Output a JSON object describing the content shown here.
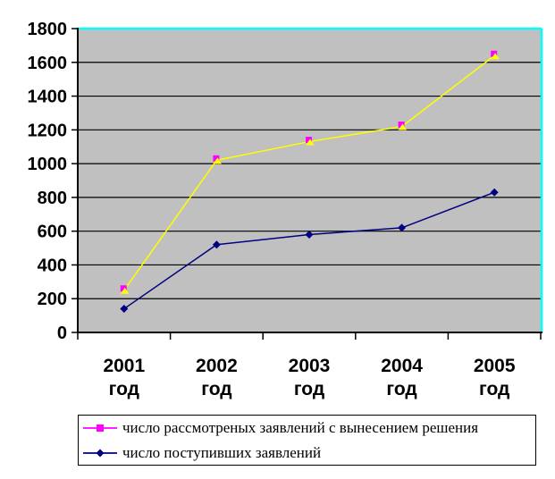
{
  "chart_data": {
    "type": "line",
    "title": "",
    "xlabel": "",
    "ylabel": "",
    "categories": [
      "2001 год",
      "2002 год",
      "2003 год",
      "2004 год",
      "2005 год"
    ],
    "series": [
      {
        "name": "число рассмотреных заявлений с вынесением решения",
        "values": [
          250,
          1020,
          1130,
          1220,
          1640
        ],
        "line_color": "#FFFF00",
        "marker": "square",
        "marker_color": "#FF00FF",
        "marker_overlay": {
          "shape": "triangle",
          "color": "#FFFF00"
        },
        "legend_line_color": "#FF00FF"
      },
      {
        "name": "число поступивших заявлений",
        "values": [
          140,
          520,
          580,
          620,
          830
        ],
        "line_color": "#000080",
        "marker": "diamond",
        "marker_color": "#000080",
        "legend_line_color": "#000080"
      }
    ],
    "ylim": [
      0,
      1800
    ],
    "ytick_step": 200,
    "ytick_labels": [
      "0",
      "200",
      "400",
      "600",
      "800",
      "1000",
      "1200",
      "1400",
      "1600",
      "1800"
    ],
    "grid": true,
    "legend_position": "bottom",
    "colors": {
      "plot_bg": "#C0C0C0",
      "grid": "#000000",
      "axis": "#000000",
      "frame_highlight": "#00FFFF",
      "background": "#FFFFFF",
      "legend_border": "#000000",
      "text": "#000000"
    }
  }
}
